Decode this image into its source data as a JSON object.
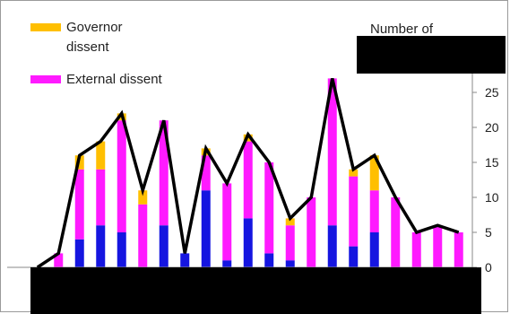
{
  "chart_data": {
    "type": "bar",
    "stacked": true,
    "combined_with": "line",
    "y_axis": {
      "position": "right",
      "title": "Number of",
      "ylim": [
        0,
        27
      ],
      "ticks": [
        0,
        5,
        10,
        15,
        20,
        25
      ]
    },
    "grid": false,
    "legend": {
      "position": "top-left"
    },
    "categories_count": 21,
    "series": [
      {
        "name": "",
        "kind": "bar",
        "color": "#1515e0",
        "values": [
          0,
          0,
          4,
          6,
          5,
          0,
          6,
          2,
          11,
          1,
          7,
          2,
          1,
          0,
          6,
          3,
          5,
          0,
          0,
          0,
          0
        ]
      },
      {
        "name": "External dissent",
        "kind": "bar",
        "color": "#ff1aff",
        "values": [
          0,
          2,
          10,
          8,
          16,
          9,
          15,
          0,
          5,
          11,
          11,
          13,
          5,
          10,
          21,
          10,
          6,
          10,
          5,
          6,
          5
        ]
      },
      {
        "name": "Governor dissent",
        "kind": "bar",
        "color": "#ffbf00",
        "values": [
          0,
          0,
          2,
          4,
          1,
          2,
          0,
          0,
          1,
          0,
          1,
          0,
          1,
          0,
          0,
          1,
          5,
          0,
          0,
          0,
          0
        ]
      },
      {
        "name": "",
        "kind": "line",
        "color": "#000000",
        "values": [
          0,
          2,
          16,
          18,
          22,
          11,
          21,
          2,
          17,
          12,
          19,
          15,
          7,
          10,
          27,
          14,
          16,
          10,
          5,
          6,
          5
        ]
      }
    ]
  },
  "legend": {
    "governor_label": "Governor dissent",
    "external_label": "External dissent",
    "governor_color": "#ffbf00",
    "external_color": "#ff1aff"
  },
  "axis_title": "Number of"
}
